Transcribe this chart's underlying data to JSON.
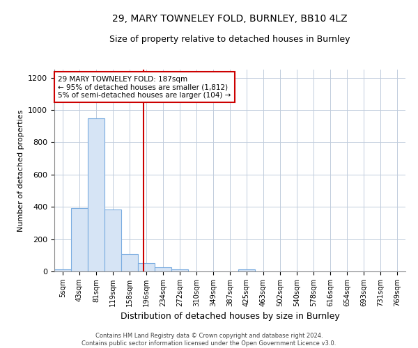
{
  "title": "29, MARY TOWNELEY FOLD, BURNLEY, BB10 4LZ",
  "subtitle": "Size of property relative to detached houses in Burnley",
  "xlabel": "Distribution of detached houses by size in Burnley",
  "ylabel": "Number of detached properties",
  "categories": [
    "5sqm",
    "43sqm",
    "81sqm",
    "119sqm",
    "158sqm",
    "196sqm",
    "234sqm",
    "272sqm",
    "310sqm",
    "349sqm",
    "387sqm",
    "425sqm",
    "463sqm",
    "502sqm",
    "540sqm",
    "578sqm",
    "616sqm",
    "654sqm",
    "693sqm",
    "731sqm",
    "769sqm"
  ],
  "values": [
    15,
    393,
    950,
    385,
    107,
    50,
    25,
    13,
    0,
    0,
    0,
    13,
    0,
    0,
    0,
    0,
    0,
    0,
    0,
    0,
    0
  ],
  "bar_color": "#d6e4f5",
  "bar_edge_color": "#7aace0",
  "vline_color": "#cc0000",
  "ylim": [
    0,
    1250
  ],
  "yticks": [
    0,
    200,
    400,
    600,
    800,
    1000,
    1200
  ],
  "annotation_text": "29 MARY TOWNELEY FOLD: 187sqm\n← 95% of detached houses are smaller (1,812)\n5% of semi-detached houses are larger (104) →",
  "annotation_box_color": "#ffffff",
  "annotation_box_edge": "#cc0000",
  "footer_line1": "Contains HM Land Registry data © Crown copyright and database right 2024.",
  "footer_line2": "Contains public sector information licensed under the Open Government Licence v3.0.",
  "title_fontsize": 10,
  "subtitle_fontsize": 9,
  "xlabel_fontsize": 9,
  "ylabel_fontsize": 8,
  "bar_width": 0.97,
  "vline_index": 4.85
}
